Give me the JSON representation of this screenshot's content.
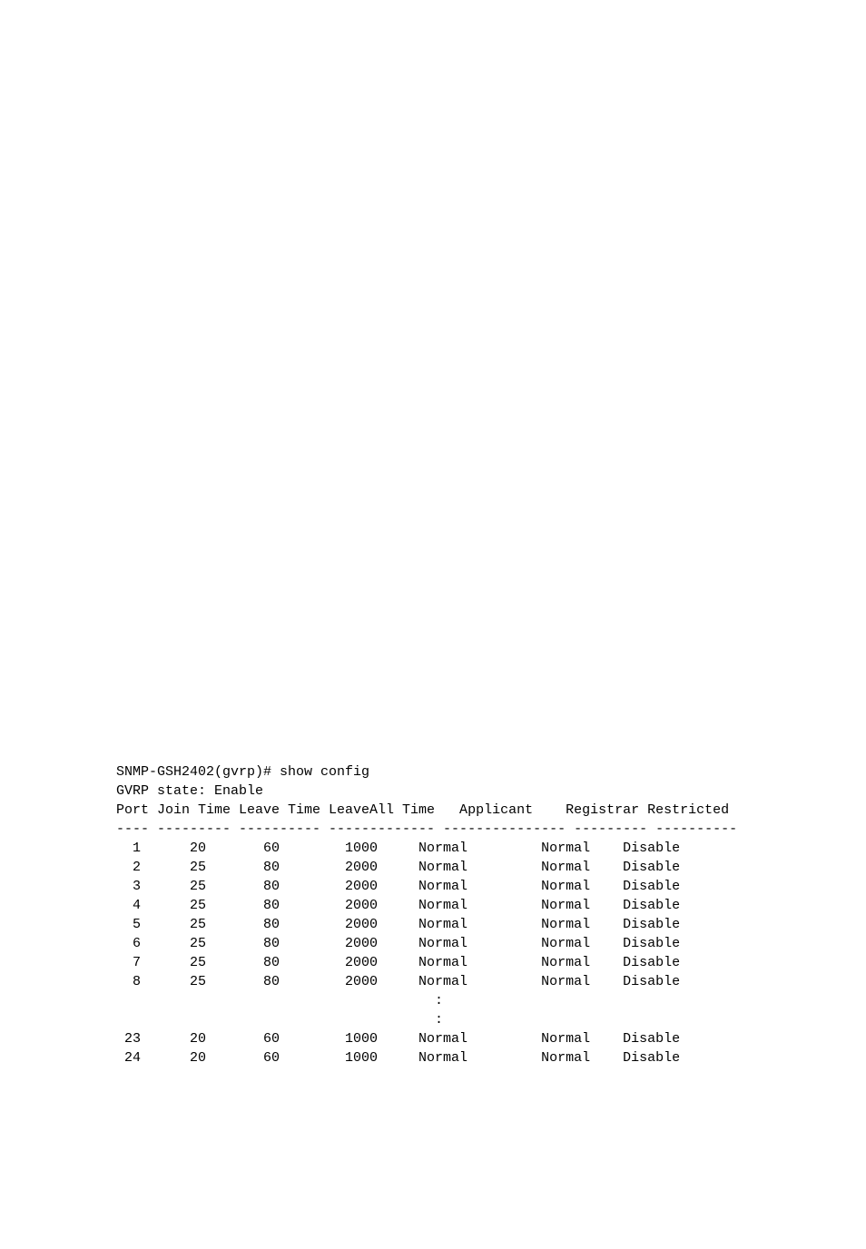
{
  "prompt": "SNMP-GSH2402(gvrp)# show config",
  "state_line": "GVRP state: Enable",
  "header": "Port Join Time Leave Time LeaveAll Time   Applicant    Registrar Restricted",
  "separator": "---- --------- ---------- ------------- --------------- --------- ----------",
  "rows": [
    "  1      20       60        1000     Normal         Normal    Disable",
    "  2      25       80        2000     Normal         Normal    Disable",
    "  3      25       80        2000     Normal         Normal    Disable",
    "  4      25       80        2000     Normal         Normal    Disable",
    "  5      25       80        2000     Normal         Normal    Disable",
    "  6      25       80        2000     Normal         Normal    Disable",
    "  7      25       80        2000     Normal         Normal    Disable",
    "  8      25       80        2000     Normal         Normal    Disable",
    "                                       :",
    "                                       :",
    " 23      20       60        1000     Normal         Normal    Disable",
    " 24      20       60        1000     Normal         Normal    Disable"
  ]
}
